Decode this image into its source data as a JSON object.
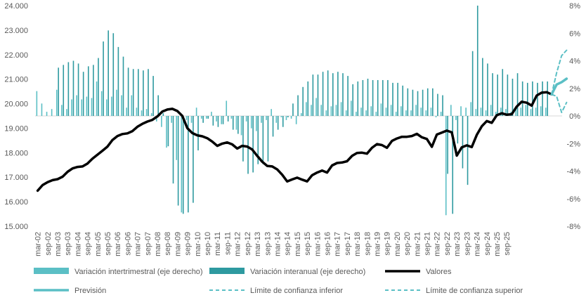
{
  "chart_data": {
    "type": "bar+line",
    "title": "",
    "colors": {
      "intertrimestral": "#5bbfc5",
      "interanual": "#2e9aa0",
      "valores": "#000000",
      "prevision": "#5bbfc5",
      "confianza": "#5bbfc5",
      "axis_text": "#595959",
      "axis_line": "#d9d9d9"
    },
    "left_axis": {
      "min": 15000,
      "max": 24000,
      "step": 1000,
      "labels": [
        "15.000",
        "16.000",
        "17.000",
        "18.000",
        "19.000",
        "20.000",
        "21.000",
        "22.000",
        "23.000",
        "24.000"
      ]
    },
    "right_axis": {
      "min": -8,
      "max": 8,
      "step": 2,
      "labels": [
        "-8%",
        "-6%",
        "-4%",
        "-2%",
        "0%",
        "2%",
        "4%",
        "6%",
        "8%"
      ]
    },
    "x_labels": [
      "mar-02",
      "sep-02",
      "mar-03",
      "sep-03",
      "mar-04",
      "sep-04",
      "mar-05",
      "sep-05",
      "mar-06",
      "sep-06",
      "mar-07",
      "sep-07",
      "mar-08",
      "sep-08",
      "mar-09",
      "sep-09",
      "mar-10",
      "sep-10",
      "mar-11",
      "sep-11",
      "mar-12",
      "sep-12",
      "mar-13",
      "sep-13",
      "mar-14",
      "sep-14",
      "mar-15",
      "sep-15",
      "mar-16",
      "sep-16",
      "mar-17",
      "sep-17",
      "mar-18",
      "sep-18",
      "mar-19",
      "sep-19",
      "mar-20",
      "sep-20",
      "mar-21",
      "sep-21",
      "mar-22",
      "sep-22",
      "mar-23",
      "sep-23",
      "mar-24",
      "sep-24",
      "mar-25",
      "sep-25"
    ],
    "quarters_start": "2002Q1",
    "series": [
      {
        "name": "Variación intertrimestral (eje derecho)",
        "axis": "right",
        "kind": "bar",
        "values": [
          1.8,
          0.9,
          0.3,
          0.5,
          1.9,
          0.8,
          0.5,
          1.2,
          1.5,
          1.2,
          1.4,
          1.3,
          2.5,
          1.8,
          1.2,
          1.4,
          1.9,
          1.5,
          0.6,
          1.5,
          0.6,
          0.4,
          0.5,
          0.2,
          -0.4,
          -0.8,
          -2.3,
          -0.5,
          -3.2,
          -7.0,
          -0.3,
          -0.5,
          0.6,
          -0.2,
          -0.2,
          0.3,
          -0.4,
          -0.6,
          1.1,
          -0.2,
          -1.0,
          -1.4,
          -0.4,
          -0.9,
          -1.1,
          -0.5,
          -0.3,
          0.5,
          -0.5,
          -0.1,
          -0.3,
          -0.2,
          -0.6,
          0.2,
          1.0,
          0.8,
          1.3,
          0.8,
          0.4,
          0.7,
          0.8,
          1.0,
          0.4,
          1.1,
          0.3,
          0.6,
          0.4,
          0.7,
          0.3,
          0.9,
          0.6,
          0.8,
          0.3,
          0.7,
          0.4,
          0.4,
          0.8,
          0.6,
          0.4,
          0.6,
          -0.1,
          0.3,
          -7.2,
          0.8,
          -0.3,
          0.7,
          0.6,
          1.0,
          0.5,
          0.6,
          0.4,
          0.8,
          0.3,
          0.6,
          0.5,
          0.3,
          0.7,
          0.6,
          0.8,
          0.5,
          0.6,
          0.7,
          0.6
        ]
      },
      {
        "name": "Variación interanual (eje derecho)",
        "axis": "right",
        "kind": "bar",
        "values": [
          null,
          null,
          null,
          null,
          3.5,
          3.7,
          3.9,
          4.0,
          3.8,
          3.2,
          3.6,
          3.7,
          4.2,
          5.4,
          6.2,
          6.0,
          5.0,
          4.3,
          3.5,
          3.4,
          3.4,
          3.3,
          3.4,
          2.9,
          1.5,
          0.2,
          -2.2,
          -4.9,
          -6.5,
          -7.1,
          -7.0,
          -6.3,
          -2.5,
          -0.5,
          -0.2,
          -0.7,
          -0.8,
          -0.6,
          -0.4,
          -1.0,
          -1.3,
          -3.3,
          -4.2,
          -4.1,
          -3.5,
          -3.5,
          -3.3,
          -1.5,
          -1.0,
          -0.8,
          -0.1,
          0.9,
          1.5,
          2.1,
          2.5,
          3.0,
          3.0,
          3.2,
          3.3,
          3.1,
          3.2,
          3.1,
          2.9,
          2.3,
          2.5,
          2.6,
          2.7,
          2.6,
          2.6,
          2.6,
          2.6,
          2.4,
          2.4,
          2.2,
          2.0,
          1.9,
          1.8,
          1.9,
          2.0,
          2.0,
          1.6,
          1.5,
          -4.2,
          -7.1,
          -2.0,
          -3.8,
          -5.0,
          4.7,
          8.0,
          4.2,
          3.8,
          3.1,
          3.0,
          3.4,
          3.0,
          2.7,
          3.1,
          2.5,
          2.4,
          2.5,
          2.4,
          2.5,
          2.5
        ]
      },
      {
        "name": "Valores",
        "axis": "left",
        "kind": "line",
        "values": [
          16450,
          16680,
          16800,
          16880,
          16920,
          17020,
          17220,
          17360,
          17420,
          17440,
          17560,
          17760,
          17920,
          18080,
          18250,
          18520,
          18680,
          18760,
          18790,
          18880,
          19060,
          19180,
          19270,
          19340,
          19480,
          19680,
          19760,
          19790,
          19700,
          19500,
          19000,
          18800,
          18710,
          18670,
          18590,
          18450,
          18280,
          18370,
          18420,
          18340,
          18170,
          18280,
          18250,
          18130,
          17870,
          17630,
          17460,
          17440,
          17320,
          17100,
          16830,
          16910,
          16980,
          16900,
          16830,
          17080,
          17190,
          17270,
          17190,
          17480,
          17580,
          17600,
          17650,
          17870,
          17990,
          18000,
          17960,
          18200,
          18350,
          18310,
          18200,
          18480,
          18580,
          18650,
          18650,
          18680,
          18770,
          18630,
          18560,
          18240,
          18740,
          18820,
          18900,
          18830,
          17880,
          18220,
          18300,
          18230,
          18730,
          19080,
          19290,
          19220,
          19530,
          19610,
          19550,
          19570,
          19880,
          20080,
          20040,
          19920,
          20330,
          20450,
          20470,
          20380
        ]
      },
      {
        "name": "Previsión",
        "axis": "left",
        "kind": "line",
        "start_index": 103,
        "values": [
          20380,
          20780,
          20880,
          21020
        ]
      },
      {
        "name": "Límite de confianza inferior",
        "axis": "left",
        "kind": "dashed",
        "start_index": 103,
        "values": [
          20380,
          20300,
          19640,
          20050
        ]
      },
      {
        "name": "Límite de confianza superior",
        "axis": "left",
        "kind": "dashed",
        "start_index": 103,
        "values": [
          20380,
          21260,
          21960,
          22180
        ]
      }
    ],
    "legend": [
      {
        "label": "Variación intertrimestral (eje derecho)",
        "style": "bar-light"
      },
      {
        "label": "Variación interanual (eje derecho)",
        "style": "bar-dark"
      },
      {
        "label": "Valores",
        "style": "line-black"
      },
      {
        "label": "Previsión",
        "style": "line-teal"
      },
      {
        "label": "Límite de confianza inferior",
        "style": "dashed"
      },
      {
        "label": "Límite de confianza superior",
        "style": "dashed"
      }
    ]
  }
}
